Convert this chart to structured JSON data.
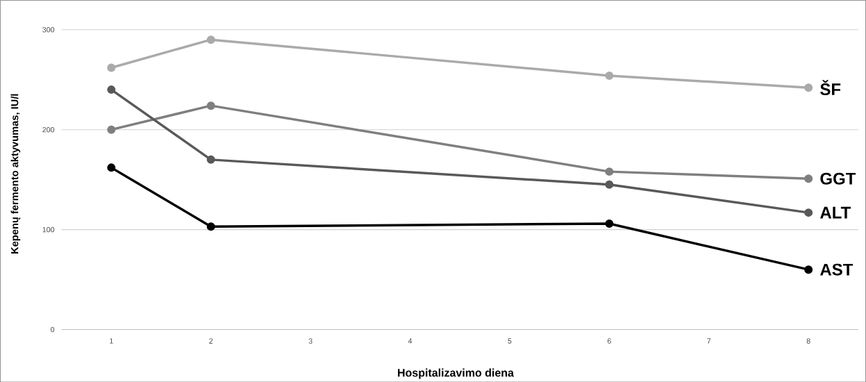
{
  "chart_data": {
    "type": "line",
    "xlabel": "Hospitalizavimo diena",
    "ylabel": "Kepenų fermento aktyvumas, IU/l",
    "x": [
      1,
      2,
      6,
      8
    ],
    "series": [
      {
        "name": "ŠF",
        "color": "#aaaaaa",
        "values": [
          262,
          290,
          254,
          242
        ]
      },
      {
        "name": "GGT",
        "color": "#7f7f7f",
        "values": [
          200,
          224,
          158,
          151
        ]
      },
      {
        "name": "ALT",
        "color": "#595959",
        "values": [
          240,
          170,
          145,
          117
        ]
      },
      {
        "name": "AST",
        "color": "#000000",
        "values": [
          162,
          103,
          106,
          60
        ]
      }
    ],
    "xlim": [
      0.5,
      8.5
    ],
    "xticks": [
      1,
      2,
      3,
      4,
      5,
      6,
      7,
      8
    ],
    "ylim": [
      0,
      300
    ],
    "yticks": [
      0,
      100,
      200,
      300
    ],
    "grid": "y",
    "legend": false,
    "marker": "circle",
    "line_style": "solid"
  }
}
